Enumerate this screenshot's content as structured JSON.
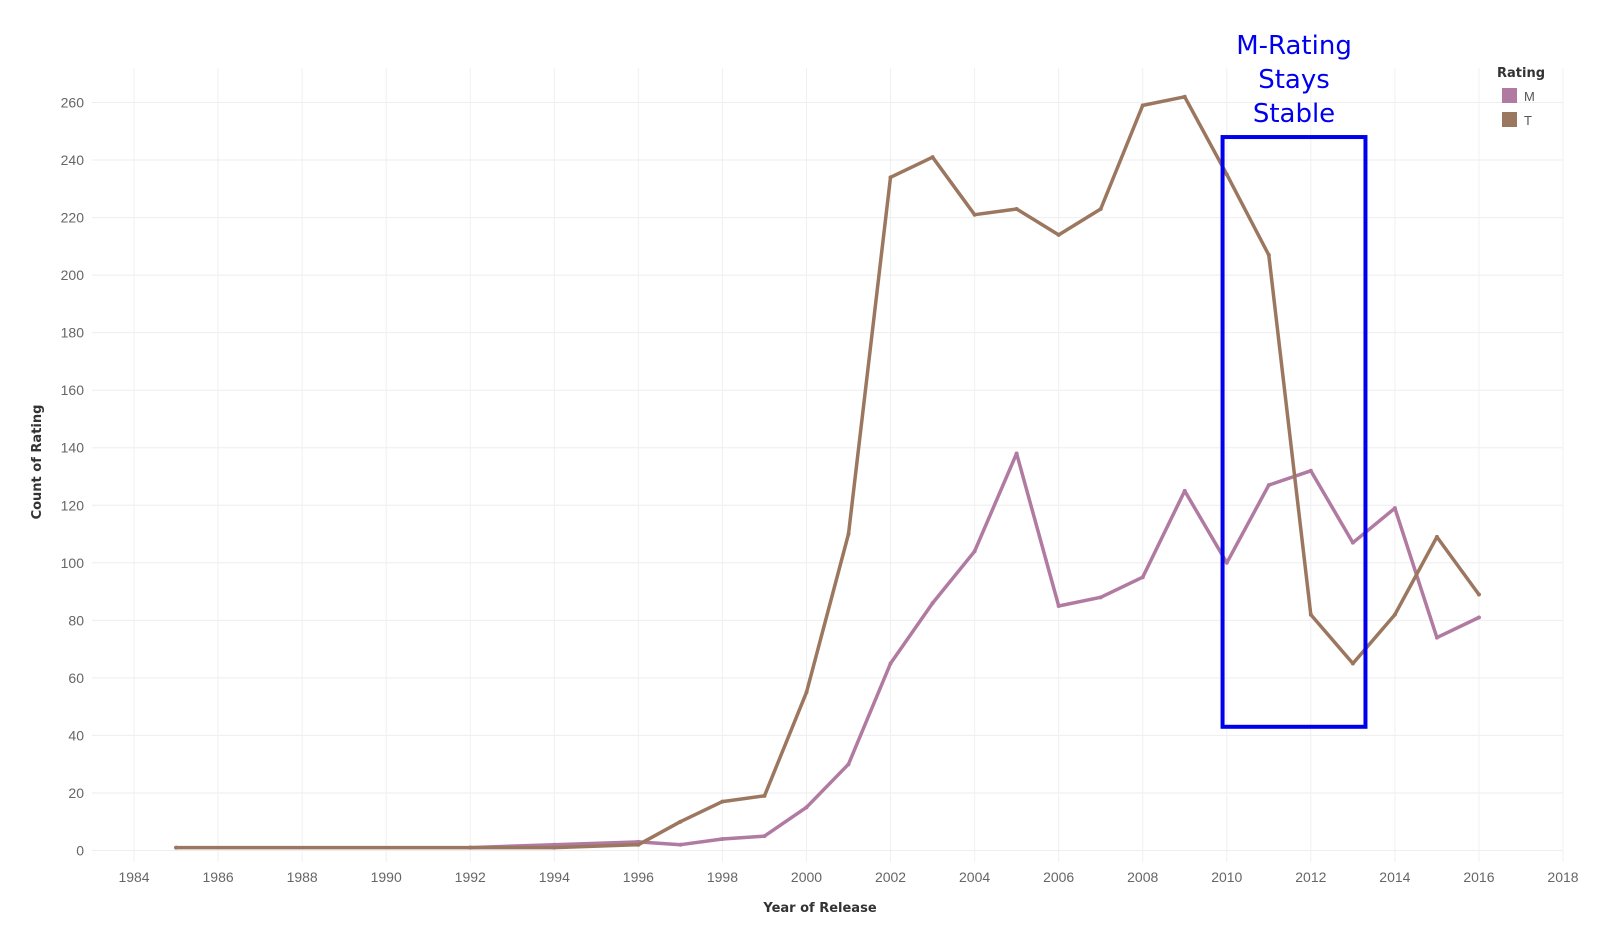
{
  "chart_data": {
    "type": "line",
    "xlabel": "Year of Release",
    "ylabel": "Count of Rating",
    "xlim": [
      1983,
      2018
    ],
    "ylim": [
      -4,
      272
    ],
    "x_ticks": [
      1984,
      1986,
      1988,
      1990,
      1992,
      1994,
      1996,
      1998,
      2000,
      2002,
      2004,
      2006,
      2008,
      2010,
      2012,
      2014,
      2016,
      2018
    ],
    "y_ticks": [
      0,
      20,
      40,
      60,
      80,
      100,
      120,
      140,
      160,
      180,
      200,
      220,
      240,
      260
    ],
    "grid": true,
    "legend": {
      "title": "Rating",
      "position": "top-right"
    },
    "series": [
      {
        "name": "M",
        "color": "#b07aa1",
        "x": [
          1992,
          1994,
          1996,
          1997,
          1998,
          1999,
          2000,
          2001,
          2002,
          2003,
          2004,
          2005,
          2006,
          2007,
          2008,
          2009,
          2010,
          2011,
          2012,
          2013,
          2014,
          2015,
          2016
        ],
        "values": [
          1,
          2,
          3,
          2,
          4,
          5,
          15,
          30,
          65,
          86,
          104,
          138,
          85,
          88,
          95,
          125,
          100,
          127,
          132,
          107,
          119,
          74,
          81
        ]
      },
      {
        "name": "T",
        "color": "#9c7760",
        "x": [
          1985,
          1992,
          1994,
          1996,
          1997,
          1998,
          1999,
          2000,
          2001,
          2002,
          2003,
          2004,
          2005,
          2006,
          2007,
          2008,
          2009,
          2010,
          2011,
          2012,
          2013,
          2014,
          2015,
          2016
        ],
        "values": [
          1,
          1,
          1,
          2,
          10,
          17,
          19,
          55,
          110,
          234,
          241,
          221,
          223,
          214,
          223,
          259,
          262,
          235,
          207,
          82,
          65,
          82,
          109,
          89
        ]
      }
    ],
    "annotation": {
      "lines": [
        "M-Rating",
        "Stays",
        "Stable"
      ],
      "color": "#0000ee",
      "box_x": [
        2009.9,
        2013.3
      ],
      "box_y": [
        43,
        248
      ]
    }
  }
}
